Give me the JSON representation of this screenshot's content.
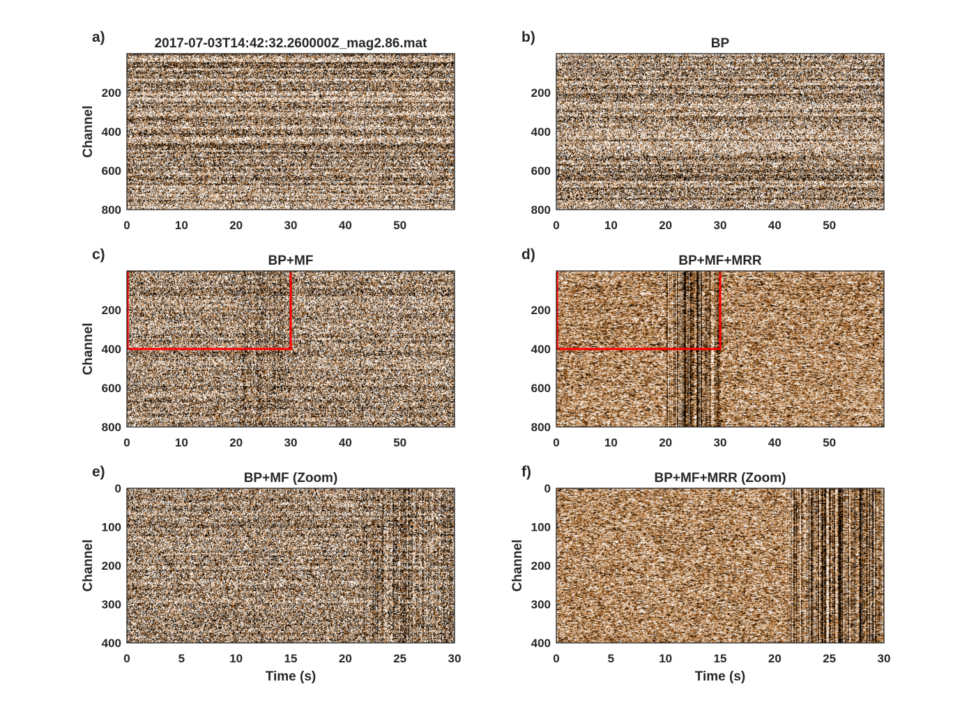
{
  "chart_data": [
    {
      "panel_label": "a)",
      "type": "heatmap",
      "title": "2017-07-03T14:42:32.260000Z_mag2.86.mat",
      "xlim": [
        0,
        60
      ],
      "ylim": [
        0,
        800
      ],
      "xticks": [
        0,
        10,
        20,
        30,
        40,
        50
      ],
      "yticks": [
        200,
        400,
        600,
        800
      ],
      "xlabel": "",
      "ylabel": "Channel",
      "colormap": [
        "#000000",
        "#8a4a10",
        "#c98a4a",
        "#e2d7cc",
        "#ffffff"
      ],
      "texture": "raw noise with strong horizontal channel striping",
      "event_window_s": null,
      "box": null
    },
    {
      "panel_label": "b)",
      "type": "heatmap",
      "title": "BP",
      "xlim": [
        0,
        60
      ],
      "ylim": [
        0,
        800
      ],
      "xticks": [
        0,
        10,
        20,
        30,
        40,
        50
      ],
      "yticks": [
        200,
        400,
        600,
        800
      ],
      "xlabel": "",
      "ylabel": "",
      "colormap": [
        "#000000",
        "#8a4a10",
        "#c98a4a",
        "#e2d7cc",
        "#ffffff"
      ],
      "texture": "band-passed noise with horizontal channel striping",
      "event_window_s": null,
      "box": null
    },
    {
      "panel_label": "c)",
      "type": "heatmap",
      "title": "BP+MF",
      "xlim": [
        0,
        60
      ],
      "ylim": [
        0,
        800
      ],
      "xticks": [
        0,
        10,
        20,
        30,
        40,
        50
      ],
      "yticks": [
        200,
        400,
        600,
        800
      ],
      "xlabel": "",
      "ylabel": "Channel",
      "colormap": [
        "#000000",
        "#8a4a10",
        "#c98a4a",
        "#e2d7cc",
        "#ffffff"
      ],
      "texture": "median-filtered, faint vertical event arrivals",
      "event_window_s": [
        21,
        30
      ],
      "box": {
        "x": [
          0,
          30
        ],
        "y": [
          0,
          400
        ],
        "color": "#ff0000"
      }
    },
    {
      "panel_label": "d)",
      "type": "heatmap",
      "title": "BP+MF+MRR",
      "xlim": [
        0,
        60
      ],
      "ylim": [
        0,
        800
      ],
      "xticks": [
        0,
        10,
        20,
        30,
        40,
        50
      ],
      "yticks": [
        200,
        400,
        600,
        800
      ],
      "xlabel": "",
      "ylabel": "",
      "colormap": [
        "#000000",
        "#8a4a10",
        "#c98a4a",
        "#e2d7cc",
        "#ffffff"
      ],
      "texture": "denoised, strong vertical event arrivals",
      "event_window_s": [
        20,
        30
      ],
      "box": {
        "x": [
          0,
          30
        ],
        "y": [
          0,
          400
        ],
        "color": "#ff0000"
      }
    },
    {
      "panel_label": "e)",
      "type": "heatmap",
      "title": "BP+MF (Zoom)",
      "xlim": [
        0,
        30
      ],
      "ylim": [
        0,
        400
      ],
      "xticks": [
        0,
        5,
        10,
        15,
        20,
        25,
        30
      ],
      "yticks": [
        0,
        100,
        200,
        300,
        400
      ],
      "xlabel": "Time (s)",
      "ylabel": "Channel",
      "colormap": [
        "#000000",
        "#8a4a10",
        "#c98a4a",
        "#e2d7cc",
        "#ffffff"
      ],
      "texture": "zoomed median-filtered, vertical arrivals after 21 s",
      "event_window_s": [
        21.5,
        30
      ],
      "box": null
    },
    {
      "panel_label": "f)",
      "type": "heatmap",
      "title": "BP+MF+MRR (Zoom)",
      "xlim": [
        0,
        30
      ],
      "ylim": [
        0,
        400
      ],
      "xticks": [
        0,
        5,
        10,
        15,
        20,
        25,
        30
      ],
      "yticks": [
        0,
        100,
        200,
        300,
        400
      ],
      "xlabel": "Time (s)",
      "ylabel": "Channel",
      "colormap": [
        "#000000",
        "#8a4a10",
        "#c98a4a",
        "#e2d7cc",
        "#ffffff"
      ],
      "texture": "zoomed denoised, strong dark vertical arrivals after 21 s",
      "event_window_s": [
        21,
        30
      ],
      "box": null
    }
  ]
}
